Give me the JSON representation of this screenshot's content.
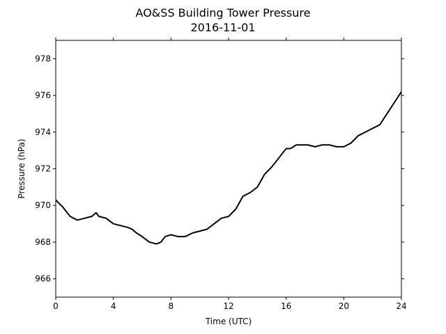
{
  "chart_data": {
    "type": "line",
    "title": "AO&SS Building Tower Pressure",
    "subtitle": "2016-11-01",
    "xlabel": "Time (UTC)",
    "ylabel": "Pressure (hPa)",
    "xlim": [
      0,
      24
    ],
    "ylim": [
      965,
      979
    ],
    "xticks": [
      0,
      4,
      8,
      12,
      16,
      20,
      24
    ],
    "yticks": [
      966,
      968,
      970,
      972,
      974,
      976,
      978
    ],
    "grid": false,
    "line_color": "#000000",
    "series": [
      {
        "x": [
          0,
          0.5,
          1,
          1.5,
          2,
          2.5,
          2.8,
          3,
          3.5,
          4,
          4.5,
          5,
          5.3,
          5.6,
          6,
          6.5,
          7,
          7.3,
          7.6,
          8,
          8.5,
          9,
          9.5,
          10,
          10.5,
          11,
          11.5,
          12,
          12.5,
          13,
          13.5,
          14,
          14.5,
          15,
          15.5,
          16,
          16.3,
          16.7,
          17,
          17.5,
          18,
          18.5,
          19,
          19.5,
          20,
          20.5,
          21,
          21.5,
          22,
          22.5,
          23,
          23.5,
          24
        ],
        "y": [
          970.3,
          969.9,
          969.4,
          969.2,
          969.3,
          969.4,
          969.6,
          969.4,
          969.3,
          969.0,
          968.9,
          968.8,
          968.7,
          968.5,
          968.3,
          968.0,
          967.9,
          968.0,
          968.3,
          968.4,
          968.3,
          968.3,
          968.5,
          968.6,
          968.7,
          969.0,
          969.3,
          969.4,
          969.8,
          970.5,
          970.7,
          971.0,
          971.7,
          972.1,
          972.6,
          973.1,
          973.1,
          973.3,
          973.3,
          973.3,
          973.2,
          973.3,
          973.3,
          973.2,
          973.2,
          973.4,
          973.8,
          974.0,
          974.2,
          974.4,
          975.0,
          975.6,
          976.2
        ]
      }
    ]
  }
}
